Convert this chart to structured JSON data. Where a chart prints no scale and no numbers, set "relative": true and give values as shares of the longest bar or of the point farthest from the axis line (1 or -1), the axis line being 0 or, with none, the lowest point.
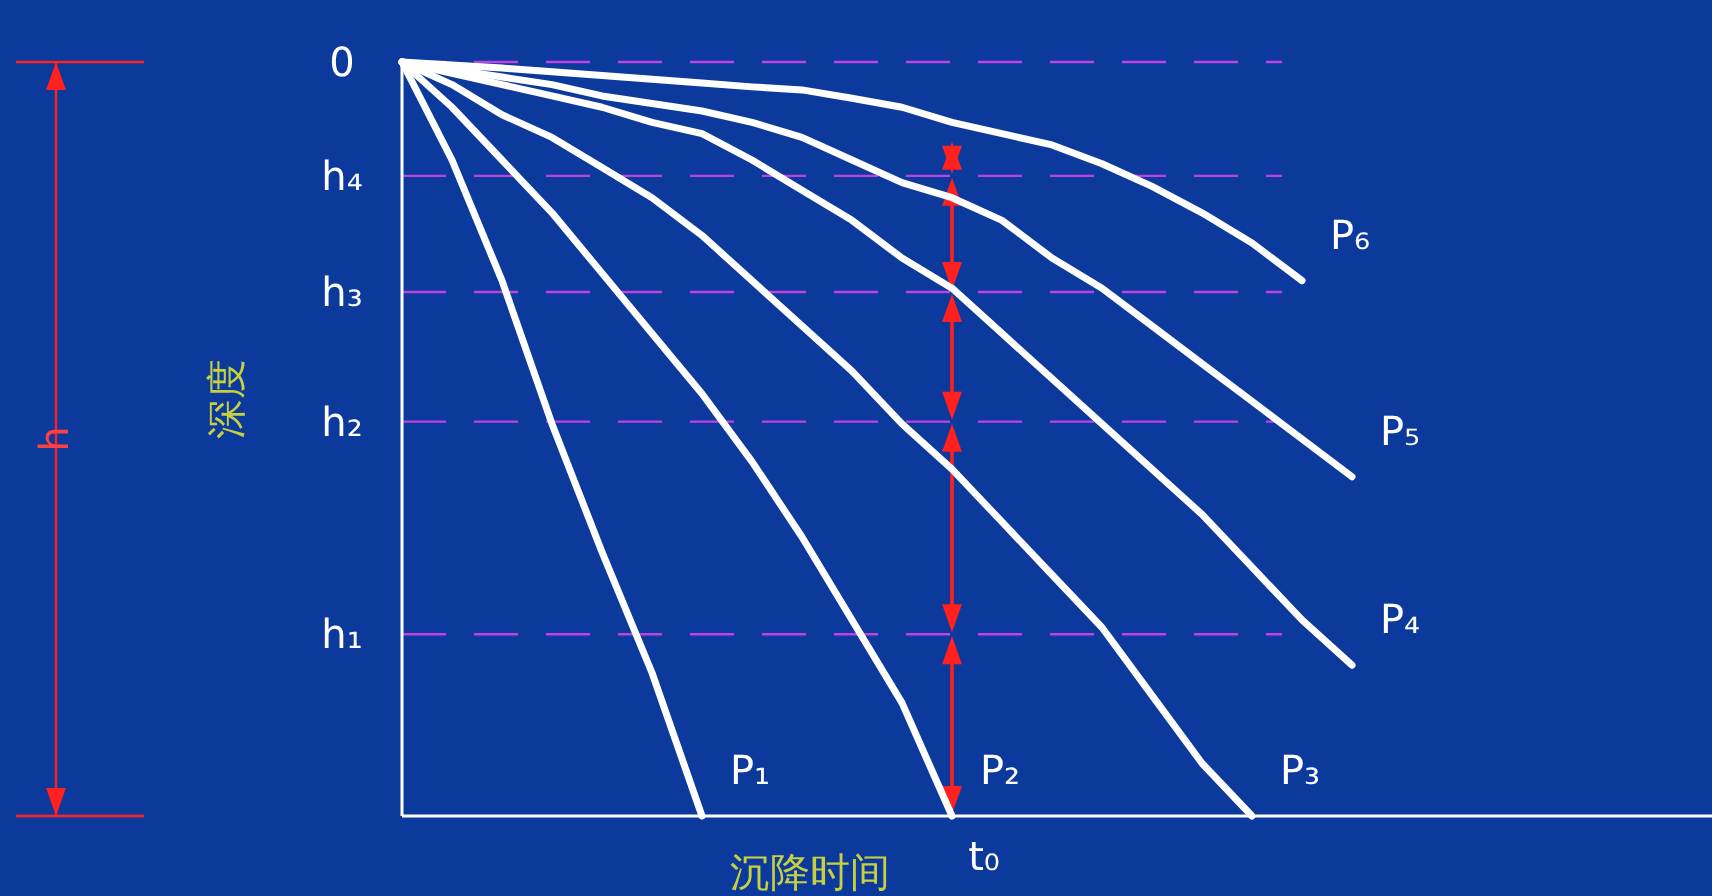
{
  "chart_data": {
    "type": "line",
    "relative": true,
    "xlabel": "沉降时间",
    "ylabel": "深度",
    "categories": [
      null,
      null,
      null,
      null,
      null,
      null,
      null,
      null,
      null,
      null,
      null,
      null,
      null,
      null,
      null,
      null,
      null,
      null,
      null,
      null,
      null
    ],
    "series": [
      {
        "name": "P₁",
        "color": "#ffffff",
        "values": [
          0,
          -0.13,
          -0.29,
          -0.48,
          -0.65,
          -0.81,
          -1,
          null,
          null,
          null,
          null,
          null,
          null,
          null,
          null,
          null,
          null,
          null,
          null,
          null,
          null
        ]
      },
      {
        "name": "P₂",
        "color": "#ffffff",
        "values": [
          0,
          -0.06,
          -0.13,
          -0.2,
          -0.28,
          -0.36,
          -0.44,
          -0.53,
          -0.63,
          -0.74,
          -0.85,
          -1,
          null,
          null,
          null,
          null,
          null,
          null,
          null,
          null,
          null
        ]
      },
      {
        "name": "P₃",
        "color": "#ffffff",
        "values": [
          0,
          -0.03,
          -0.07,
          -0.1,
          -0.14,
          -0.18,
          -0.23,
          -0.29,
          -0.35,
          -0.41,
          -0.48,
          -0.54,
          -0.61,
          -0.68,
          -0.75,
          -0.84,
          -0.93,
          -1,
          null,
          null,
          null
        ]
      },
      {
        "name": "P₄",
        "color": "#ffffff",
        "values": [
          0,
          -0.015,
          -0.03,
          -0.045,
          -0.06,
          -0.08,
          -0.095,
          -0.13,
          -0.17,
          -0.21,
          -0.26,
          -0.3,
          -0.36,
          -0.42,
          -0.48,
          -0.54,
          -0.6,
          -0.67,
          -0.74,
          -0.8,
          null
        ]
      },
      {
        "name": "P₅",
        "color": "#ffffff",
        "values": [
          0,
          -0.01,
          -0.02,
          -0.03,
          -0.045,
          -0.055,
          -0.065,
          -0.08,
          -0.1,
          -0.13,
          -0.16,
          -0.18,
          -0.21,
          -0.26,
          -0.3,
          -0.35,
          -0.4,
          -0.45,
          -0.5,
          -0.55,
          null
        ]
      },
      {
        "name": "P₆",
        "color": "#ffffff",
        "values": [
          0,
          -0.004,
          -0.008,
          -0.013,
          -0.018,
          -0.023,
          -0.028,
          -0.033,
          -0.037,
          -0.048,
          -0.06,
          -0.08,
          -0.095,
          -0.11,
          -0.135,
          -0.165,
          -0.2,
          -0.24,
          -0.29,
          null,
          null
        ]
      }
    ],
    "ref_lines": [
      {
        "axis": "y",
        "value": 0,
        "label": "0",
        "color": "#c040e0",
        "line_style": "dashed"
      },
      {
        "axis": "y",
        "value": -0.151,
        "label": "h₄",
        "color": "#c040e0",
        "line_style": "dashed"
      },
      {
        "axis": "y",
        "value": -0.305,
        "label": "h₃",
        "color": "#c040e0",
        "line_style": "dashed"
      },
      {
        "axis": "y",
        "value": -0.477,
        "label": "h₂",
        "color": "#c040e0",
        "line_style": "dashed"
      },
      {
        "axis": "y",
        "value": -0.759,
        "label": "h₁",
        "color": "#c040e0",
        "line_style": "dashed"
      }
    ],
    "annotations": [
      "h",
      "t₀"
    ]
  }
}
